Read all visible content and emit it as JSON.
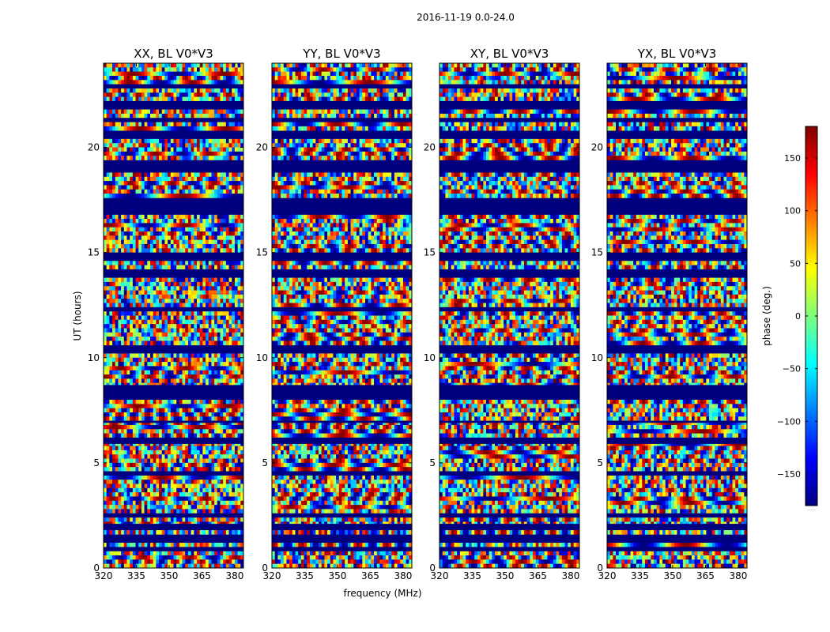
{
  "chart_data": {
    "type": "heatmap",
    "suptitle": "2016-11-19 0.0-24.0",
    "xlabel": "frequency (MHz)",
    "ylabel": "UT (hours)",
    "xlim": [
      320,
      384
    ],
    "ylim": [
      0,
      24
    ],
    "xticks": [
      320,
      335,
      350,
      365,
      380
    ],
    "yticks": [
      0,
      5,
      10,
      15,
      20
    ],
    "panels": [
      {
        "title": "XX, BL V0*V3"
      },
      {
        "title": "YY, BL V0*V3"
      },
      {
        "title": "XY, BL V0*V3"
      },
      {
        "title": "YX, BL V0*V3"
      }
    ],
    "colorbar": {
      "label": "phase (deg.)",
      "range": [
        -180,
        180
      ],
      "ticks": [
        150,
        100,
        50,
        0,
        -50,
        -100,
        -150
      ],
      "tick_labels": [
        "150",
        "100",
        "50",
        "0",
        "−50",
        "−100",
        "−150"
      ],
      "colormap": [
        "#00007f",
        "#0000ff",
        "#007fff",
        "#00ffff",
        "#7fff7f",
        "#ffff00",
        "#ff7f00",
        "#ff0000",
        "#7f0000"
      ],
      "footnote": "....."
    },
    "flagged_bands_hours": [
      [
        0.8,
        1.0
      ],
      [
        1.3,
        1.5
      ],
      [
        1.9,
        2.1
      ],
      [
        2.4,
        2.6
      ],
      [
        4.4,
        4.6
      ],
      [
        5.9,
        6.2
      ],
      [
        6.9,
        7.0
      ],
      [
        8.0,
        8.3
      ],
      [
        8.5,
        8.7
      ],
      [
        10.3,
        10.5
      ],
      [
        12.3,
        12.4
      ],
      [
        13.9,
        14.2
      ],
      [
        14.7,
        15.0
      ],
      [
        16.8,
        17.5
      ],
      [
        18.9,
        19.3
      ],
      [
        20.5,
        20.7
      ],
      [
        21.2,
        21.4
      ],
      [
        21.9,
        22.2
      ],
      [
        22.9,
        23.0
      ]
    ]
  }
}
